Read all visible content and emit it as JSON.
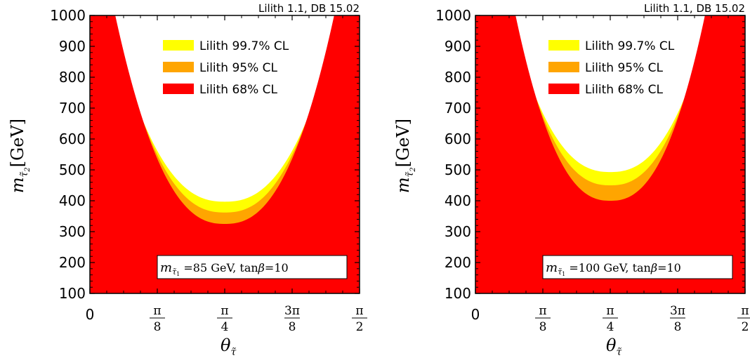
{
  "chart_data": [
    {
      "type": "area",
      "panel": "left",
      "credit": "Lilith 1.1, DB 15.02",
      "ylabel": {
        "symbol": "m",
        "sub": "τ̃",
        "sub2": "2",
        "unit": "[GeV]"
      },
      "xlabel": {
        "symbol": "θ",
        "sub": "τ̃"
      },
      "ylim": [
        100,
        1000
      ],
      "xlim": [
        0,
        1.5708
      ],
      "yticks": [
        "100",
        "200",
        "300",
        "400",
        "500",
        "600",
        "700",
        "800",
        "900",
        "1000"
      ],
      "xticks": [
        {
          "num": "0",
          "den": ""
        },
        {
          "num": "π",
          "den": "8"
        },
        {
          "num": "π",
          "den": "4"
        },
        {
          "num": "3π",
          "den": "8"
        },
        {
          "num": "π",
          "den": "2"
        }
      ],
      "legend": [
        {
          "label": "Lilith 99.7% CL",
          "color": "#ffff00"
        },
        {
          "label": "Lilith 95% CL",
          "color": "#ffa500"
        },
        {
          "label": "Lilith 68% CL",
          "color": "#ff0000"
        }
      ],
      "legend_position": "top-right",
      "annotation": {
        "symbol": "m",
        "sub": "τ̃",
        "sub2": "1",
        "text": " =85 GeV, tan",
        "beta": "β",
        "tail": "=10"
      },
      "contours": {
        "cl68_min_mass": 325,
        "cl95_min_mass": 362,
        "cl997_min_mass": 397,
        "cl68_theta_at_1000": [
          0.148,
          1.423
        ],
        "cl95_theta_at_1000": [
          0.13,
          1.441
        ],
        "cl997_theta_at_1000": [
          0.111,
          1.46
        ]
      }
    },
    {
      "type": "area",
      "panel": "right",
      "credit": "Lilith 1.1, DB 15.02",
      "ylabel": {
        "symbol": "m",
        "sub": "τ̃",
        "sub2": "2",
        "unit": "[GeV]"
      },
      "xlabel": {
        "symbol": "θ",
        "sub": "τ̃"
      },
      "ylim": [
        100,
        1000
      ],
      "xlim": [
        0,
        1.5708
      ],
      "yticks": [
        "100",
        "200",
        "300",
        "400",
        "500",
        "600",
        "700",
        "800",
        "900",
        "1000"
      ],
      "xticks": [
        {
          "num": "0",
          "den": ""
        },
        {
          "num": "π",
          "den": "8"
        },
        {
          "num": "π",
          "den": "4"
        },
        {
          "num": "3π",
          "den": "8"
        },
        {
          "num": "π",
          "den": "2"
        }
      ],
      "legend": [
        {
          "label": "Lilith 99.7% CL",
          "color": "#ffff00"
        },
        {
          "label": "Lilith 95% CL",
          "color": "#ffa500"
        },
        {
          "label": "Lilith 68% CL",
          "color": "#ff0000"
        }
      ],
      "legend_position": "top-right",
      "annotation": {
        "symbol": "m",
        "sub": "τ̃",
        "sub2": "1",
        "text": " =100 GeV, tan",
        "beta": "β",
        "tail": "=10"
      },
      "contours": {
        "cl68_min_mass": 400,
        "cl95_min_mass": 450,
        "cl997_min_mass": 493,
        "cl68_theta_at_1000": [
          0.234,
          1.337
        ],
        "cl95_theta_at_1000": [
          0.214,
          1.357
        ],
        "cl997_theta_at_1000": [
          0.195,
          1.376
        ]
      }
    }
  ]
}
